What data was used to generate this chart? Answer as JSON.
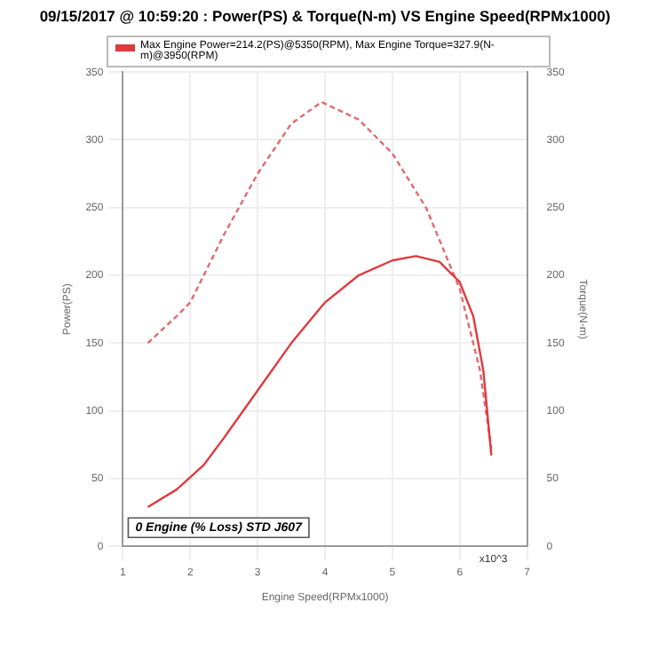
{
  "chart_data": {
    "type": "line",
    "title": "09/15/2017 @ 10:59:20 : Power(PS) & Torque(N-m) VS Engine Speed(RPMx1000)",
    "xlabel": "Engine Speed(RPMx1000)",
    "ylabel": "Power(PS)",
    "y2label": "Torque(N-m)",
    "annotations": [
      "Max Engine Power=214.2(PS)@5350(RPM), Max Engine Torque=327.9(N-m)@3950(RPM)",
      "0 Engine (% Loss) STD J607",
      "x10^3"
    ],
    "xlim": [
      1,
      7
    ],
    "xticks": [
      1,
      2,
      3,
      4,
      5,
      6,
      7
    ],
    "ylim": [
      0,
      350
    ],
    "yticks": [
      0,
      50,
      100,
      150,
      200,
      250,
      300,
      350
    ],
    "y2lim": [
      0,
      350
    ],
    "y2ticks": [
      0,
      50,
      100,
      150,
      200,
      250,
      300,
      350
    ],
    "grid": true,
    "marker": "none",
    "series": [
      {
        "color": "#e03a3e",
        "line_style": "solid",
        "x": [
          1.37,
          1.8,
          2.2,
          2.5,
          3.0,
          3.5,
          4.0,
          4.5,
          5.0,
          5.35,
          5.7,
          6.0,
          6.2,
          6.35,
          6.47
        ],
        "values": [
          29,
          42,
          60,
          80,
          115,
          150,
          180,
          200,
          211,
          214.2,
          210,
          195,
          170,
          130,
          67
        ]
      },
      {
        "color": "#e06a6e",
        "line_style": "dashed",
        "axis": "y2",
        "x": [
          1.37,
          1.8,
          2.0,
          2.5,
          3.0,
          3.5,
          3.95,
          4.5,
          5.0,
          5.5,
          6.0,
          6.3,
          6.47
        ],
        "values": [
          150,
          170,
          180,
          230,
          275,
          312,
          327.9,
          315,
          290,
          250,
          190,
          130,
          72
        ]
      }
    ]
  }
}
